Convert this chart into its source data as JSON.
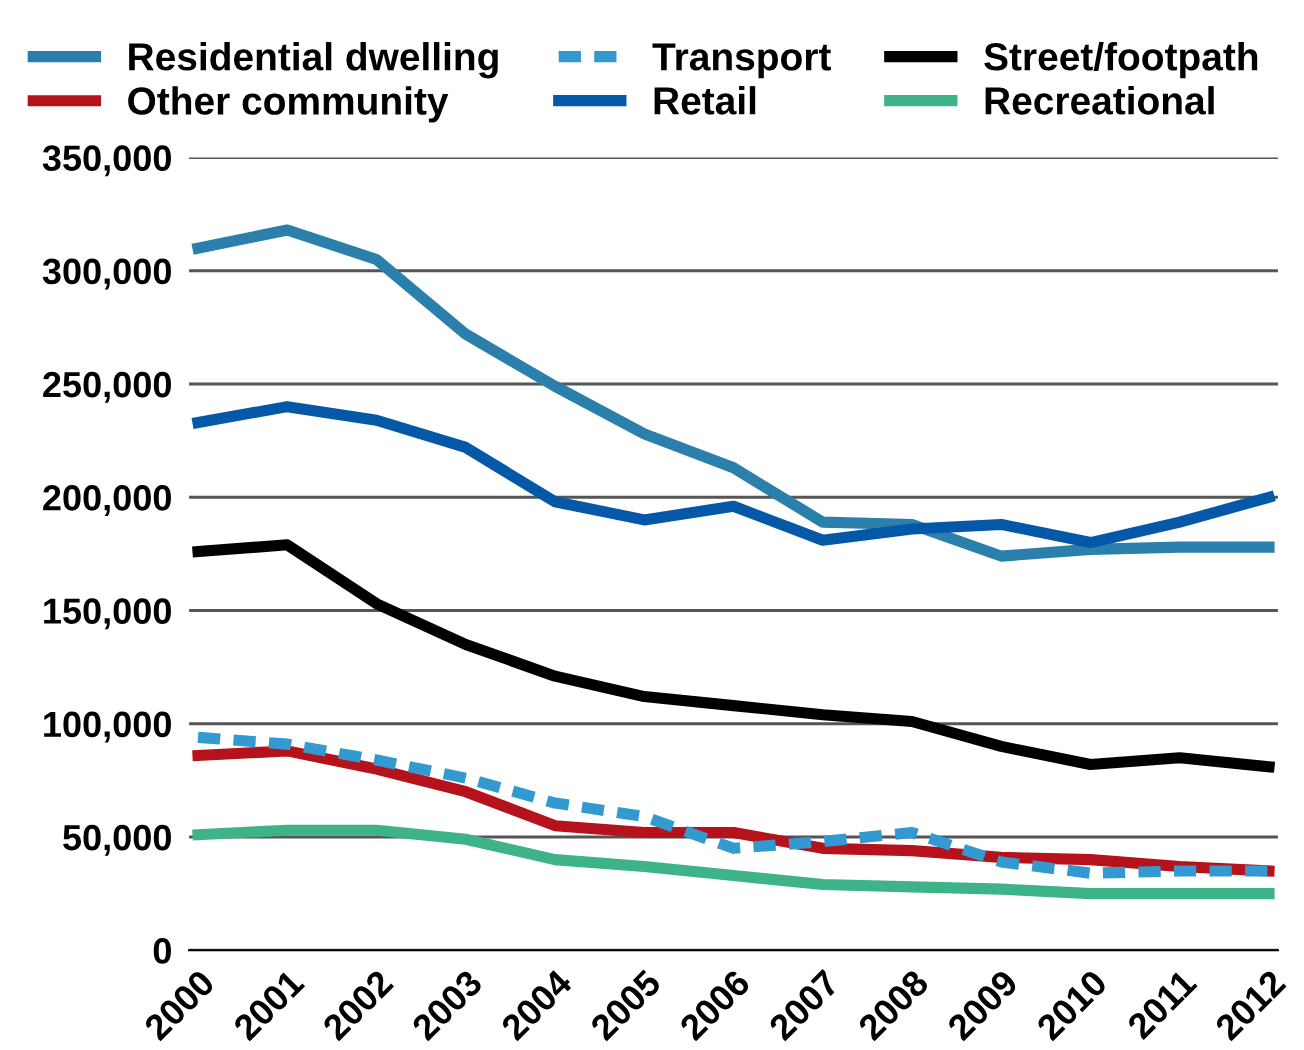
{
  "chart_data": {
    "type": "line",
    "categories": [
      "2000",
      "2001",
      "2002",
      "2003",
      "2004",
      "2005",
      "2006",
      "2007",
      "2008",
      "2009",
      "2010",
      "2011",
      "2012"
    ],
    "series": [
      {
        "name": "Residential dwelling",
        "color": "#2a7fab",
        "values": [
          310000,
          318000,
          305000,
          272000,
          249000,
          228000,
          213000,
          189000,
          188000,
          174000,
          177000,
          178000,
          178000
        ]
      },
      {
        "name": "Other community",
        "color": "#b5121b",
        "values": [
          86000,
          88000,
          80000,
          70000,
          55000,
          52000,
          52000,
          45000,
          44000,
          41000,
          40000,
          37000,
          35000
        ]
      },
      {
        "name": "Transport",
        "color": "#3399d1",
        "line_style": "dashed",
        "values": [
          94000,
          91000,
          84000,
          76000,
          65000,
          59000,
          45000,
          48000,
          52000,
          39000,
          34000,
          35000,
          35000
        ]
      },
      {
        "name": "Retail",
        "color": "#0558a8",
        "values": [
          233000,
          240000,
          234000,
          222000,
          198000,
          190000,
          196000,
          181000,
          186000,
          188000,
          180000,
          189000,
          200000
        ]
      },
      {
        "name": "Street/footpath",
        "color": "#000000",
        "values": [
          176000,
          179000,
          153000,
          135000,
          121000,
          112000,
          108000,
          104000,
          101000,
          90000,
          82000,
          85000,
          81000
        ]
      },
      {
        "name": "Recreational",
        "color": "#3db387",
        "values": [
          51000,
          53000,
          53000,
          49000,
          40000,
          37000,
          33000,
          29000,
          28000,
          27000,
          25000,
          25000,
          25000
        ]
      }
    ],
    "ylim": [
      0,
      350000
    ],
    "yticks": [
      {
        "value": 0,
        "label": "0"
      },
      {
        "value": 50000,
        "label": "50,000"
      },
      {
        "value": 100000,
        "label": "100,000"
      },
      {
        "value": 150000,
        "label": "150,000"
      },
      {
        "value": 200000,
        "label": "200,000"
      },
      {
        "value": 250000,
        "label": "250,000"
      },
      {
        "value": 300000,
        "label": "300,000"
      },
      {
        "value": 350000,
        "label": "350,000"
      }
    ],
    "grid": "y",
    "legend": "top",
    "line_style": "solid"
  }
}
